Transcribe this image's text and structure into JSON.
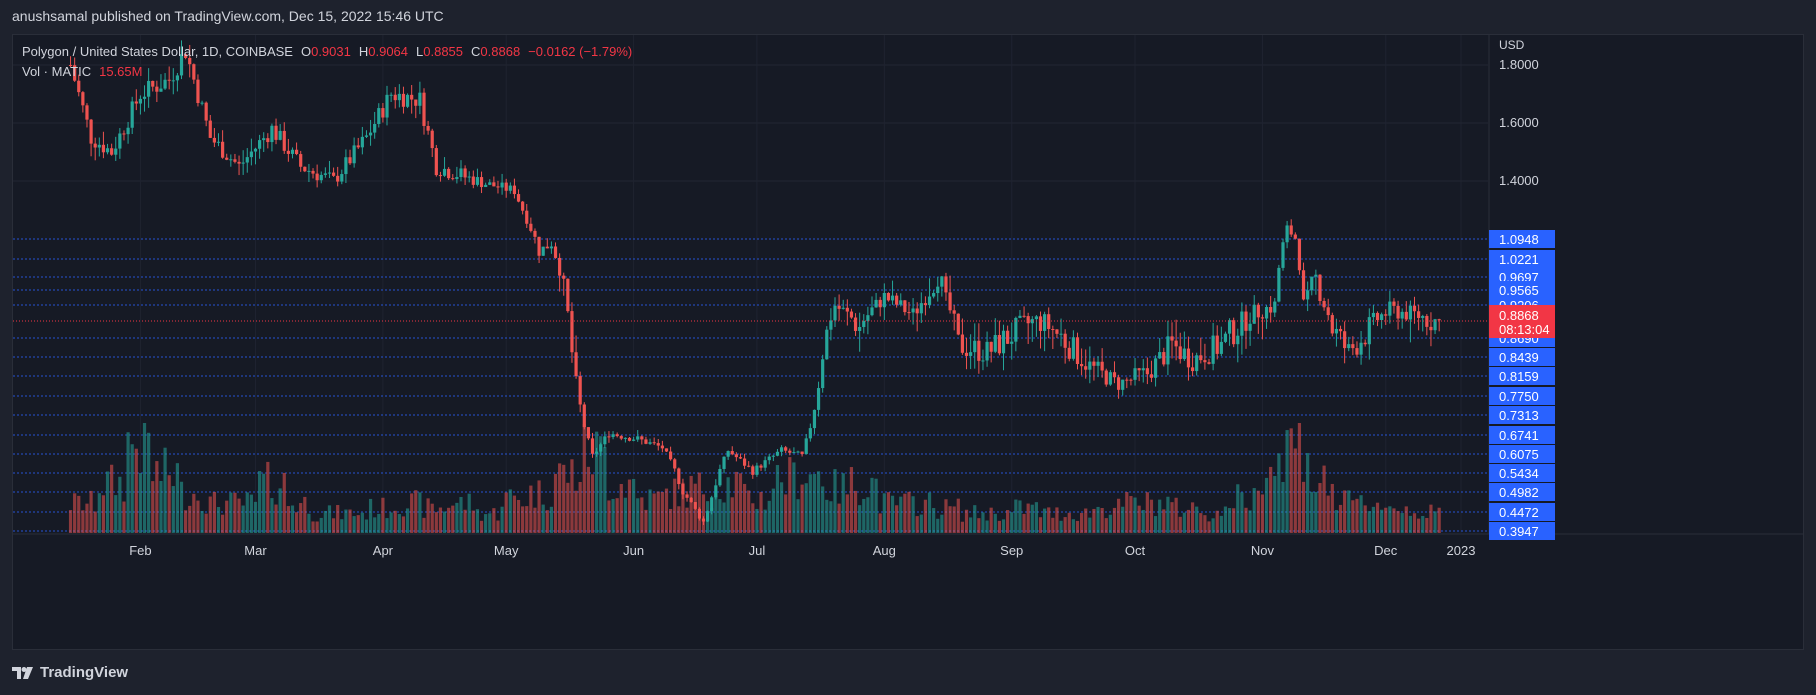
{
  "header": {
    "published_by": "anushsamal published on TradingView.com, Dec 15, 2022 15:46 UTC"
  },
  "legend": {
    "symbol": "Polygon / United States Dollar, 1D, COINBASE",
    "open_label": "O",
    "open": "0.9031",
    "high_label": "H",
    "high": "0.9064",
    "low_label": "L",
    "low": "0.8855",
    "close_label": "C",
    "close": "0.8868",
    "change": "−0.0162 (−1.79%)",
    "volume_label": "Vol · MATIC",
    "volume": "15.65M"
  },
  "footer": {
    "brand": "TradingView"
  },
  "colors": {
    "up": "#26a69a",
    "down": "#ef5350",
    "level_line": "#2962ff",
    "last_price": "#f23645",
    "level_tag": "#2962ff"
  },
  "chart_data": {
    "type": "candlestick",
    "currency_label": "USD",
    "y_ticks": [
      "1.8000",
      "1.6000",
      "1.4000"
    ],
    "x_ticks": [
      "Feb",
      "Mar",
      "Apr",
      "May",
      "Jun",
      "Jul",
      "Aug",
      "Sep",
      "Oct",
      "Nov",
      "Dec",
      "2023"
    ],
    "levels": [
      "1.0948",
      "1.0221",
      "0.9697",
      "0.9565",
      "0.9206",
      "0.8690",
      "0.8439",
      "0.8159",
      "0.7750",
      "0.7313",
      "0.6741",
      "0.6075",
      "0.5434",
      "0.4982",
      "0.4472",
      "0.3947"
    ],
    "last_price": {
      "value": "0.8868",
      "countdown": "08:13:04"
    },
    "anchors": [
      {
        "x": "Jan 15",
        "y": 1.8
      },
      {
        "x": "Jan 20",
        "y": 1.55
      },
      {
        "x": "Jan 25",
        "y": 1.5
      },
      {
        "x": "Feb 1",
        "y": 1.7
      },
      {
        "x": "Feb 8",
        "y": 1.75
      },
      {
        "x": "Feb 12",
        "y": 1.85
      },
      {
        "x": "Feb 18",
        "y": 1.55
      },
      {
        "x": "Feb 25",
        "y": 1.45
      },
      {
        "x": "Mar 5",
        "y": 1.58
      },
      {
        "x": "Mar 12",
        "y": 1.45
      },
      {
        "x": "Mar 20",
        "y": 1.4
      },
      {
        "x": "Mar 28",
        "y": 1.55
      },
      {
        "x": "Apr 3",
        "y": 1.7
      },
      {
        "x": "Apr 10",
        "y": 1.68
      },
      {
        "x": "Apr 14",
        "y": 1.45
      },
      {
        "x": "Apr 20",
        "y": 1.42
      },
      {
        "x": "Apr 27",
        "y": 1.38
      },
      {
        "x": "May 3",
        "y": 1.35
      },
      {
        "x": "May 6",
        "y": 1.2
      },
      {
        "x": "May 9",
        "y": 1.05
      },
      {
        "x": "May 12",
        "y": 1.08
      },
      {
        "x": "May 15",
        "y": 0.95
      },
      {
        "x": "May 18",
        "y": 0.8
      },
      {
        "x": "May 22",
        "y": 0.6
      },
      {
        "x": "May 26",
        "y": 0.68
      },
      {
        "x": "Jun 2",
        "y": 0.66
      },
      {
        "x": "Jun 8",
        "y": 0.63
      },
      {
        "x": "Jun 13",
        "y": 0.5
      },
      {
        "x": "Jun 18",
        "y": 0.42
      },
      {
        "x": "Jun 24",
        "y": 0.62
      },
      {
        "x": "Jun 30",
        "y": 0.55
      },
      {
        "x": "Jul 7",
        "y": 0.62
      },
      {
        "x": "Jul 12",
        "y": 0.6
      },
      {
        "x": "Jul 17",
        "y": 0.85
      },
      {
        "x": "Jul 20",
        "y": 0.92
      },
      {
        "x": "Jul 26",
        "y": 0.88
      },
      {
        "x": "Aug 1",
        "y": 0.94
      },
      {
        "x": "Aug 8",
        "y": 0.9
      },
      {
        "x": "Aug 14",
        "y": 0.98
      },
      {
        "x": "Aug 19",
        "y": 0.86
      },
      {
        "x": "Aug 26",
        "y": 0.85
      },
      {
        "x": "Sep 3",
        "y": 0.88
      },
      {
        "x": "Sep 8",
        "y": 0.89
      },
      {
        "x": "Sep 13",
        "y": 0.87
      },
      {
        "x": "Sep 20",
        "y": 0.83
      },
      {
        "x": "Sep 27",
        "y": 0.8
      },
      {
        "x": "Oct 4",
        "y": 0.82
      },
      {
        "x": "Oct 10",
        "y": 0.86
      },
      {
        "x": "Oct 15",
        "y": 0.84
      },
      {
        "x": "Oct 22",
        "y": 0.86
      },
      {
        "x": "Oct 29",
        "y": 0.9
      },
      {
        "x": "Nov 4",
        "y": 0.92
      },
      {
        "x": "Nov 7",
        "y": 1.15
      },
      {
        "x": "Nov 9",
        "y": 1.1
      },
      {
        "x": "Nov 11",
        "y": 0.92
      },
      {
        "x": "Nov 14",
        "y": 0.97
      },
      {
        "x": "Nov 18",
        "y": 0.88
      },
      {
        "x": "Nov 22",
        "y": 0.85
      },
      {
        "x": "Nov 27",
        "y": 0.88
      },
      {
        "x": "Dec 2",
        "y": 0.91
      },
      {
        "x": "Dec 8",
        "y": 0.9
      },
      {
        "x": "Dec 14",
        "y": 0.8868
      }
    ],
    "volume_pattern": [
      0.3,
      0.5,
      0.9,
      0.6,
      0.4,
      0.3,
      0.3,
      0.5,
      0.3,
      0.2,
      0.2,
      0.25,
      0.3,
      0.25,
      0.3,
      0.2,
      0.35,
      0.4,
      0.6,
      0.8,
      0.5,
      0.35,
      0.4,
      0.45,
      0.5,
      0.35,
      0.55,
      0.6,
      0.45,
      0.5,
      0.3,
      0.3,
      0.25,
      0.2,
      0.2,
      0.25,
      0.2,
      0.2,
      0.25,
      0.3,
      0.3,
      0.25,
      0.2,
      0.35,
      0.7,
      0.9,
      0.5,
      0.3,
      0.3,
      0.25,
      0.2
    ]
  }
}
